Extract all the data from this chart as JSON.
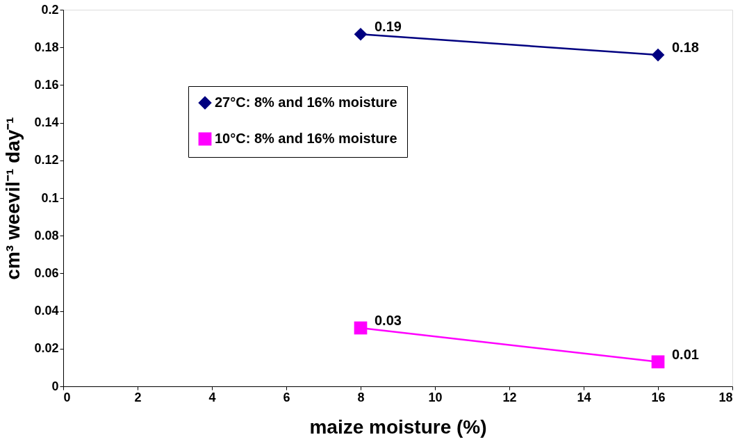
{
  "chart_data": {
    "type": "line",
    "xlabel": "maize moisture (%)",
    "ylabel": "cm³ weevil⁻¹ day⁻¹",
    "xlim": [
      0,
      18
    ],
    "xticks": [
      0,
      2,
      4,
      6,
      8,
      10,
      12,
      14,
      16,
      18
    ],
    "ylim": [
      0,
      0.2
    ],
    "yticks": [
      0,
      0.02,
      0.04,
      0.06,
      0.08,
      0.1,
      0.12,
      0.14,
      0.16,
      0.18,
      0.2
    ],
    "grid": false,
    "legend": "top",
    "x": [
      8,
      16
    ],
    "series": [
      {
        "name": "27°C: 8% and 16% moisture",
        "color": "#000080",
        "marker": "diamond",
        "values": [
          0.187,
          0.176
        ],
        "value_labels": [
          "0.19",
          "0.18"
        ]
      },
      {
        "name": "10°C: 8% and 16% moisture",
        "color": "#ff00ff",
        "marker": "square",
        "values": [
          0.031,
          0.013
        ],
        "value_labels": [
          "0.03",
          "0.01"
        ]
      }
    ]
  }
}
